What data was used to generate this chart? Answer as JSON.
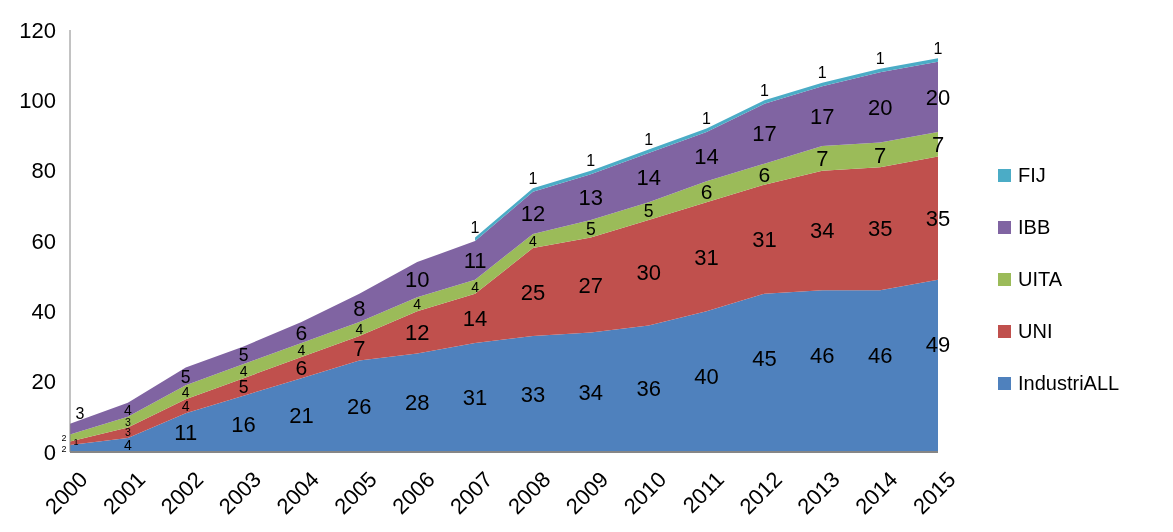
{
  "chart_data": {
    "type": "area",
    "stacked": true,
    "categories": [
      "2000",
      "2001",
      "2002",
      "2003",
      "2004",
      "2005",
      "2006",
      "2007",
      "2008",
      "2009",
      "2010",
      "2011",
      "2012",
      "2013",
      "2014",
      "2015"
    ],
    "series": [
      {
        "name": "IndustriALL",
        "color": "#4f81bd",
        "values": [
          2,
          4,
          11,
          16,
          21,
          26,
          28,
          31,
          33,
          34,
          36,
          40,
          45,
          46,
          46,
          49
        ]
      },
      {
        "name": "UNI",
        "color": "#c0504d",
        "values": [
          1,
          3,
          4,
          5,
          6,
          7,
          12,
          14,
          25,
          27,
          30,
          31,
          31,
          34,
          35,
          35
        ]
      },
      {
        "name": "UITA",
        "color": "#9bbb59",
        "values": [
          2,
          3,
          4,
          4,
          4,
          4,
          4,
          4,
          4,
          5,
          5,
          6,
          6,
          7,
          7,
          7
        ]
      },
      {
        "name": "IBB",
        "color": "#8064a2",
        "values": [
          3,
          4,
          5,
          5,
          6,
          8,
          10,
          11,
          12,
          13,
          14,
          14,
          17,
          17,
          20,
          20
        ]
      },
      {
        "name": "FIJ",
        "color": "#4bacc6",
        "values": [
          null,
          null,
          null,
          null,
          null,
          null,
          null,
          1,
          1,
          1,
          1,
          1,
          1,
          1,
          1,
          1
        ]
      }
    ],
    "ylim": [
      0,
      120
    ],
    "yticks": [
      0,
      20,
      40,
      60,
      80,
      100,
      120
    ],
    "grid": false,
    "legend": "right",
    "data_labels": true
  }
}
